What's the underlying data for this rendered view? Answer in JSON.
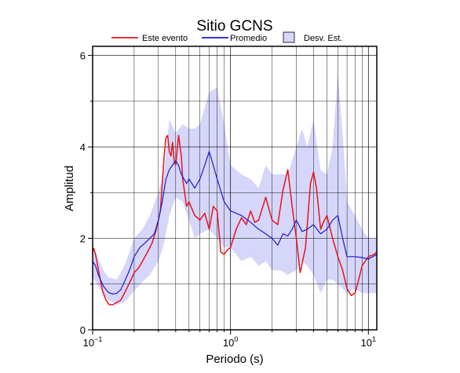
{
  "chart_data": {
    "type": "line",
    "title": "Sitio GCNS",
    "xlabel": "Periodo (s)",
    "ylabel": "Amplitud",
    "xscale": "log",
    "xlim": [
      0.1,
      11.5
    ],
    "ylim": [
      0,
      6.2
    ],
    "grid": true,
    "legend_position": "top",
    "x_ticks": [
      {
        "base": "10",
        "exp": "−1"
      },
      {
        "base": "10",
        "exp": "0"
      },
      {
        "base": "10",
        "exp": "1"
      }
    ],
    "y_ticks": [
      "0",
      "2",
      "4",
      "6"
    ],
    "legend": [
      {
        "label": "Este evento",
        "kind": "line",
        "color": "#e8141b"
      },
      {
        "label": "Promedio",
        "kind": "line",
        "color": "#1a1ad6"
      },
      {
        "label": "Desv. Est.",
        "kind": "band",
        "color": "#d6d6fa"
      }
    ],
    "series": [
      {
        "name": "Este evento",
        "color": "#e8141b",
        "x": [
          0.1,
          0.102,
          0.105,
          0.108,
          0.112,
          0.118,
          0.125,
          0.132,
          0.14,
          0.15,
          0.16,
          0.17,
          0.18,
          0.19,
          0.2,
          0.215,
          0.23,
          0.25,
          0.27,
          0.29,
          0.31,
          0.33,
          0.34,
          0.35,
          0.36,
          0.37,
          0.38,
          0.39,
          0.4,
          0.42,
          0.44,
          0.45,
          0.46,
          0.48,
          0.5,
          0.55,
          0.6,
          0.65,
          0.7,
          0.75,
          0.8,
          0.85,
          0.9,
          0.95,
          1.0,
          1.1,
          1.2,
          1.3,
          1.4,
          1.5,
          1.6,
          1.8,
          2.0,
          2.2,
          2.4,
          2.6,
          2.8,
          3.0,
          3.2,
          3.5,
          3.8,
          4.0,
          4.2,
          4.5,
          4.8,
          5.0,
          5.5,
          6.0,
          6.5,
          7.0,
          7.5,
          8.0,
          8.5,
          9.0,
          10.0,
          11.0,
          11.5
        ],
        "y": [
          1.7,
          1.78,
          1.65,
          1.45,
          1.2,
          0.85,
          0.65,
          0.55,
          0.55,
          0.6,
          0.65,
          0.8,
          0.95,
          1.1,
          1.25,
          1.35,
          1.5,
          1.7,
          1.9,
          2.2,
          2.6,
          3.8,
          4.2,
          4.25,
          3.9,
          3.8,
          4.1,
          3.7,
          3.6,
          4.25,
          3.8,
          3.3,
          3.1,
          2.7,
          2.8,
          2.5,
          2.4,
          2.55,
          2.2,
          2.7,
          2.6,
          1.7,
          1.65,
          1.75,
          1.8,
          2.2,
          2.45,
          2.3,
          2.6,
          2.35,
          2.4,
          2.9,
          2.4,
          2.3,
          3.05,
          3.5,
          2.7,
          2.0,
          1.25,
          1.8,
          3.2,
          3.45,
          3.1,
          2.2,
          2.4,
          2.5,
          2.0,
          1.6,
          1.3,
          0.9,
          0.75,
          0.8,
          1.1,
          1.4,
          1.6,
          1.65,
          1.7
        ]
      },
      {
        "name": "Promedio",
        "color": "#1a1ad6",
        "x": [
          0.1,
          0.105,
          0.11,
          0.12,
          0.13,
          0.14,
          0.15,
          0.16,
          0.17,
          0.185,
          0.2,
          0.22,
          0.24,
          0.26,
          0.28,
          0.3,
          0.32,
          0.34,
          0.36,
          0.38,
          0.4,
          0.42,
          0.44,
          0.46,
          0.48,
          0.5,
          0.55,
          0.6,
          0.65,
          0.7,
          0.75,
          0.8,
          0.9,
          1.0,
          1.2,
          1.4,
          1.6,
          1.8,
          2.0,
          2.2,
          2.4,
          2.6,
          2.8,
          3.0,
          3.3,
          3.6,
          4.0,
          4.5,
          5.0,
          5.5,
          6.0,
          6.5,
          7.0,
          8.0,
          9.0,
          10.0,
          11.5
        ],
        "y": [
          1.5,
          1.4,
          1.2,
          0.95,
          0.82,
          0.78,
          0.8,
          0.88,
          1.05,
          1.3,
          1.6,
          1.8,
          1.9,
          2.0,
          2.1,
          2.4,
          2.8,
          3.3,
          3.5,
          3.6,
          3.7,
          3.6,
          3.4,
          3.3,
          3.2,
          3.3,
          3.1,
          3.3,
          3.6,
          3.9,
          3.6,
          3.3,
          2.8,
          2.6,
          2.5,
          2.35,
          2.2,
          2.1,
          2.0,
          1.85,
          2.1,
          2.05,
          2.2,
          2.4,
          2.15,
          2.2,
          2.3,
          2.1,
          2.2,
          2.4,
          2.5,
          2.0,
          1.6,
          1.6,
          1.58,
          1.55,
          1.65
        ]
      }
    ],
    "std_band": {
      "name": "Desv. Est.",
      "color": "#d6d6fa",
      "x": [
        0.1,
        0.11,
        0.12,
        0.13,
        0.15,
        0.17,
        0.2,
        0.23,
        0.26,
        0.3,
        0.33,
        0.36,
        0.4,
        0.45,
        0.5,
        0.55,
        0.6,
        0.7,
        0.8,
        0.9,
        1.0,
        1.2,
        1.4,
        1.6,
        1.8,
        2.0,
        2.3,
        2.6,
        3.0,
        3.3,
        3.6,
        4.0,
        4.5,
        5.0,
        5.5,
        6.0,
        6.5,
        7.0,
        8.0,
        9.0,
        10.0,
        11.5
      ],
      "upper": [
        1.85,
        1.55,
        1.3,
        1.15,
        1.1,
        1.4,
        2.0,
        2.2,
        2.5,
        3.0,
        3.5,
        4.6,
        4.3,
        4.5,
        4.4,
        4.4,
        4.5,
        5.2,
        5.3,
        4.5,
        3.6,
        3.4,
        3.3,
        3.1,
        3.6,
        3.4,
        3.4,
        3.4,
        4.0,
        4.4,
        4.0,
        4.6,
        3.5,
        3.4,
        4.0,
        5.6,
        4.3,
        2.8,
        2.5,
        2.2,
        2.0,
        2.0
      ],
      "lower": [
        1.15,
        0.95,
        0.78,
        0.65,
        0.55,
        0.6,
        0.85,
        1.05,
        1.2,
        1.5,
        1.9,
        2.5,
        2.9,
        2.8,
        2.4,
        2.0,
        2.1,
        2.2,
        2.0,
        1.8,
        1.8,
        1.5,
        1.6,
        1.4,
        1.5,
        1.3,
        1.3,
        1.2,
        1.3,
        1.5,
        1.4,
        1.2,
        0.8,
        1.1,
        1.1,
        1.0,
        0.9,
        0.8,
        0.9,
        0.8,
        0.8,
        0.8
      ]
    }
  }
}
